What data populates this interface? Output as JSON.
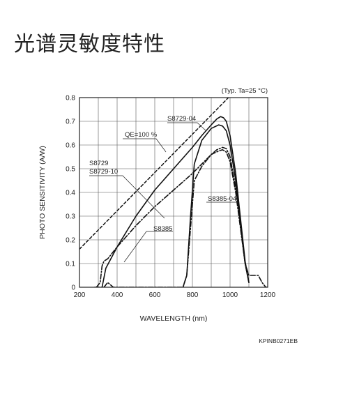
{
  "page": {
    "title": "光谱灵敏度特性"
  },
  "chart_data": {
    "type": "line",
    "xlabel": "WAVELENGTH (nm)",
    "ylabel": "PHOTO SENSITIVITY (A/W)",
    "xlim": [
      200,
      1200
    ],
    "ylim": [
      0,
      0.8
    ],
    "x_ticks": [
      200,
      400,
      600,
      800,
      1000,
      1200
    ],
    "y_ticks": [
      0,
      0.1,
      0.2,
      0.3,
      0.4,
      0.5,
      0.6,
      0.7,
      0.8
    ],
    "y_tick_labels": [
      "0",
      "0.1",
      "0.2",
      "0.3",
      "0.4",
      "0.5",
      "0.6",
      "0.7",
      "0.8"
    ],
    "grid": true,
    "condition_note": "(Typ. Ta=25 °C)",
    "figure_code": "KPINB0271EB",
    "series": [
      {
        "name": "QE=100 %",
        "style": "dashed",
        "x": [
          200,
          1000
        ],
        "y": [
          0.161,
          0.807
        ]
      },
      {
        "name": "S8729-04",
        "style": "solid",
        "x": [
          320,
          340,
          400,
          500,
          600,
          700,
          800,
          850,
          900,
          930,
          950,
          965,
          980,
          1000,
          1030,
          1050,
          1080,
          1100
        ],
        "y": [
          0.0,
          0.08,
          0.17,
          0.3,
          0.41,
          0.5,
          0.59,
          0.64,
          0.685,
          0.71,
          0.72,
          0.715,
          0.7,
          0.64,
          0.48,
          0.33,
          0.11,
          0.02
        ]
      },
      {
        "name": "S8729, S8729-10",
        "style": "solid",
        "x": [
          750,
          770,
          790,
          810,
          850,
          900,
          940,
          960,
          980,
          1000,
          1030,
          1050,
          1080,
          1100
        ],
        "y": [
          0.0,
          0.05,
          0.3,
          0.52,
          0.62,
          0.67,
          0.685,
          0.68,
          0.66,
          0.6,
          0.45,
          0.3,
          0.1,
          0.02
        ]
      },
      {
        "name": "S8385-04",
        "style": "dash-dot",
        "x": [
          290,
          310,
          320,
          330,
          350,
          400,
          500,
          600,
          700,
          800,
          850,
          900,
          930,
          960,
          980,
          1000,
          1030,
          1050,
          1080,
          1100
        ],
        "y": [
          0.0,
          0.02,
          0.09,
          0.11,
          0.12,
          0.17,
          0.26,
          0.34,
          0.41,
          0.48,
          0.52,
          0.56,
          0.58,
          0.59,
          0.585,
          0.55,
          0.42,
          0.3,
          0.1,
          0.02
        ]
      },
      {
        "name": "S8385",
        "style": "dash-dot",
        "x": [
          280,
          300,
          330,
          350,
          380,
          420,
          450,
          700,
          750,
          770,
          790,
          810,
          850,
          900,
          940,
          960,
          980,
          1000,
          1030,
          1050,
          1080,
          1100,
          1150,
          1170,
          1190,
          1200
        ],
        "y": [
          0.0,
          0.0,
          0.0,
          0.02,
          0.0,
          0.0,
          0.0,
          0.0,
          0.0,
          0.05,
          0.25,
          0.45,
          0.51,
          0.56,
          0.575,
          0.58,
          0.57,
          0.53,
          0.4,
          0.28,
          0.1,
          0.05,
          0.05,
          0.02,
          0.0,
          0.0
        ]
      }
    ],
    "annotations": [
      "S8729-04",
      "QE=100 %",
      "S8729",
      "S8729-10",
      "S8385-04",
      "S8385"
    ]
  }
}
